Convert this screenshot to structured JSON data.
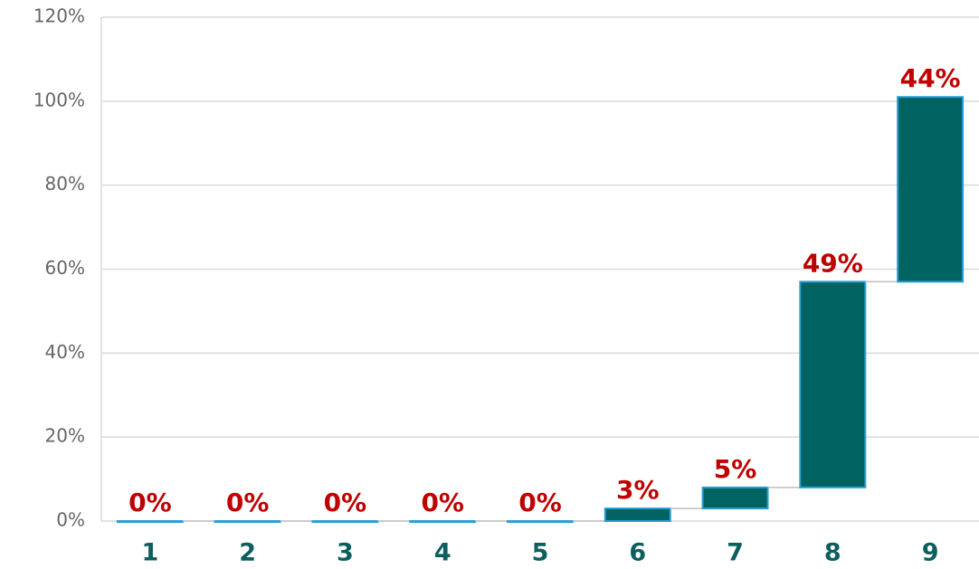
{
  "chart_data": {
    "type": "waterfall",
    "categories": [
      "1",
      "2",
      "3",
      "4",
      "5",
      "6",
      "7",
      "8",
      "9"
    ],
    "values": [
      0,
      0,
      0,
      0,
      0,
      3,
      5,
      49,
      44
    ],
    "value_labels": [
      "0%",
      "0%",
      "0%",
      "0%",
      "0%",
      "3%",
      "5%",
      "49%",
      "44%"
    ],
    "color": "#006361",
    "edge_color": "#2a9fd6",
    "ylim": [
      0,
      120
    ],
    "yticks": [
      {
        "value": 0,
        "label": "0%"
      },
      {
        "value": 20,
        "label": "20%"
      },
      {
        "value": 40,
        "label": "40%"
      },
      {
        "value": 60,
        "label": "60%"
      },
      {
        "value": 80,
        "label": "80%"
      },
      {
        "value": 100,
        "label": "100%"
      },
      {
        "value": 120,
        "label": "120%"
      }
    ],
    "grid": true
  }
}
